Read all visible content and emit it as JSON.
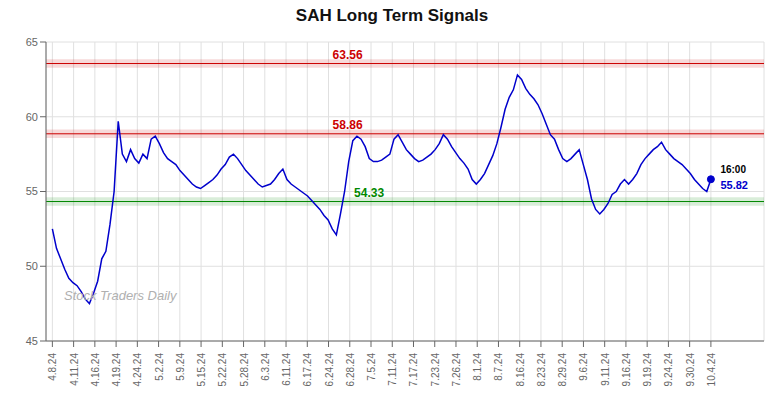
{
  "chart_data": {
    "type": "line",
    "title": "SAH Long Term Signals",
    "color": "#0000cc",
    "grid": true,
    "xlim": [
      -0.3,
      33.5
    ],
    "xticks": [
      {
        "value": 0,
        "label": "4.8.24"
      },
      {
        "value": 1,
        "label": "4.11.24"
      },
      {
        "value": 2,
        "label": "4.16.24"
      },
      {
        "value": 3,
        "label": "4.19.24"
      },
      {
        "value": 4,
        "label": "4.24.24"
      },
      {
        "value": 5,
        "label": "5.2.24"
      },
      {
        "value": 6,
        "label": "5.9.24"
      },
      {
        "value": 7,
        "label": "5.15.24"
      },
      {
        "value": 8,
        "label": "5.22.24"
      },
      {
        "value": 9,
        "label": "5.28.24"
      },
      {
        "value": 10,
        "label": "6.3.24"
      },
      {
        "value": 11,
        "label": "6.11.24"
      },
      {
        "value": 12,
        "label": "6.17.24"
      },
      {
        "value": 13,
        "label": "6.24.24"
      },
      {
        "value": 14,
        "label": "6.28.24"
      },
      {
        "value": 15,
        "label": "7.5.24"
      },
      {
        "value": 16,
        "label": "7.11.24"
      },
      {
        "value": 17,
        "label": "7.17.24"
      },
      {
        "value": 18,
        "label": "7.23.24"
      },
      {
        "value": 19,
        "label": "7.26.24"
      },
      {
        "value": 20,
        "label": "8.1.24"
      },
      {
        "value": 21,
        "label": "8.7.24"
      },
      {
        "value": 22,
        "label": "8.16.24"
      },
      {
        "value": 23,
        "label": "8.23.24"
      },
      {
        "value": 24,
        "label": "8.29.24"
      },
      {
        "value": 25,
        "label": "9.6.24"
      },
      {
        "value": 26,
        "label": "9.11.24"
      },
      {
        "value": 27,
        "label": "9.16.24"
      },
      {
        "value": 28,
        "label": "9.19.24"
      },
      {
        "value": 29,
        "label": "9.24.24"
      },
      {
        "value": 30,
        "label": "9.30.24"
      },
      {
        "value": 31,
        "label": "10.4.24"
      }
    ],
    "ylim": [
      45,
      65
    ],
    "yticks": [
      45,
      50,
      55,
      60,
      65
    ],
    "x": [
      0,
      0.19375,
      0.3875,
      0.58125,
      0.775,
      0.96875,
      1.1625,
      1.35625,
      1.55,
      1.74375,
      1.9375,
      2.13125,
      2.325,
      2.51875,
      2.7125,
      2.90625,
      3.1,
      3.29375,
      3.4875,
      3.68125,
      3.875,
      4.06875,
      4.2625,
      4.45625,
      4.65,
      4.84375,
      5.0375,
      5.23125,
      5.425,
      5.61875,
      5.8125,
      6.00625,
      6.2,
      6.39375,
      6.5875,
      6.78125,
      6.975,
      7.16875,
      7.3625,
      7.55625,
      7.75,
      7.94375,
      8.1375,
      8.33125,
      8.525,
      8.71875,
      8.9125,
      9.10625,
      9.3,
      9.49375,
      9.6875,
      9.88125,
      10.075,
      10.26875,
      10.4625,
      10.65625,
      10.85,
      11.04375,
      11.2375,
      11.43125,
      11.625,
      11.81875,
      12.0125,
      12.20625,
      12.4,
      12.59375,
      12.7875,
      12.98125,
      13.175,
      13.36875,
      13.5625,
      13.75625,
      13.95,
      14.14375,
      14.3375,
      14.53125,
      14.725,
      14.91875,
      15.1125,
      15.30625,
      15.5,
      15.69375,
      15.8875,
      16.08125,
      16.275,
      16.46875,
      16.6625,
      16.85625,
      17.05,
      17.24375,
      17.4375,
      17.63125,
      17.825,
      18.01875,
      18.2125,
      18.40625,
      18.6,
      18.79375,
      18.9875,
      19.18125,
      19.375,
      19.56875,
      19.7625,
      19.95625,
      20.15,
      20.34375,
      20.5375,
      20.73125,
      20.925,
      21.11875,
      21.3125,
      21.50625,
      21.7,
      21.89375,
      22.0875,
      22.28125,
      22.475,
      22.66875,
      22.8625,
      23.05625,
      23.25,
      23.44375,
      23.6375,
      23.83125,
      24.025,
      24.21875,
      24.4125,
      24.60625,
      24.8,
      24.99375,
      25.1875,
      25.38125,
      25.575,
      25.76875,
      25.9625,
      26.15625,
      26.35,
      26.54375,
      26.7375,
      26.93125,
      27.125,
      27.31875,
      27.5125,
      27.70625,
      27.9,
      28.09375,
      28.2875,
      28.48125,
      28.675,
      28.86875,
      29.0625,
      29.25625,
      29.45,
      29.64375,
      29.8375,
      30.03125,
      30.225,
      30.41875,
      30.6125,
      30.80625,
      31
    ],
    "values": [
      52.5,
      51.2,
      50.5,
      49.8,
      49.2,
      48.9,
      48.7,
      48.3,
      47.8,
      47.5,
      48.2,
      49.0,
      50.5,
      51.0,
      52.8,
      55.0,
      59.7,
      57.5,
      57.0,
      57.8,
      57.2,
      56.9,
      57.5,
      57.2,
      58.5,
      58.7,
      58.2,
      57.6,
      57.2,
      57.0,
      56.8,
      56.4,
      56.1,
      55.8,
      55.5,
      55.3,
      55.2,
      55.4,
      55.6,
      55.8,
      56.1,
      56.5,
      56.8,
      57.3,
      57.5,
      57.2,
      56.8,
      56.4,
      56.1,
      55.8,
      55.5,
      55.3,
      55.4,
      55.5,
      55.8,
      56.2,
      56.5,
      55.8,
      55.5,
      55.3,
      55.1,
      54.9,
      54.7,
      54.4,
      54.1,
      53.8,
      53.4,
      53.1,
      52.5,
      52.1,
      53.5,
      55.0,
      57.0,
      58.4,
      58.7,
      58.5,
      58.0,
      57.2,
      57.0,
      57.0,
      57.1,
      57.3,
      57.5,
      58.5,
      58.8,
      58.3,
      57.8,
      57.5,
      57.2,
      57.0,
      57.1,
      57.3,
      57.5,
      57.8,
      58.2,
      58.8,
      58.5,
      58.0,
      57.6,
      57.2,
      56.9,
      56.5,
      55.8,
      55.5,
      55.8,
      56.2,
      56.8,
      57.4,
      58.2,
      59.3,
      60.5,
      61.3,
      61.8,
      62.8,
      62.5,
      61.9,
      61.5,
      61.2,
      60.8,
      60.2,
      59.5,
      58.8,
      58.5,
      57.8,
      57.2,
      57.0,
      57.2,
      57.5,
      57.8,
      56.8,
      55.8,
      54.5,
      53.8,
      53.5,
      53.8,
      54.2,
      54.8,
      55.0,
      55.5,
      55.8,
      55.5,
      55.8,
      56.2,
      56.8,
      57.2,
      57.5,
      57.8,
      58.0,
      58.3,
      57.8,
      57.5,
      57.2,
      57.0,
      56.8,
      56.5,
      56.2,
      55.8,
      55.5,
      55.2,
      55.0,
      55.82
    ],
    "levels": [
      {
        "value": 63.56,
        "band": [
          63.28,
          63.84
        ],
        "color": "#cc0000"
      },
      {
        "value": 58.86,
        "band": [
          58.58,
          59.14
        ],
        "color": "#cc0000"
      },
      {
        "value": 54.33,
        "band": [
          54.05,
          54.61
        ],
        "color": "#008800"
      }
    ],
    "last_label": "16:00",
    "last_price": 55.82,
    "watermark": "Stock Traders Daily",
    "watermark_color": "#b0b0b0"
  }
}
